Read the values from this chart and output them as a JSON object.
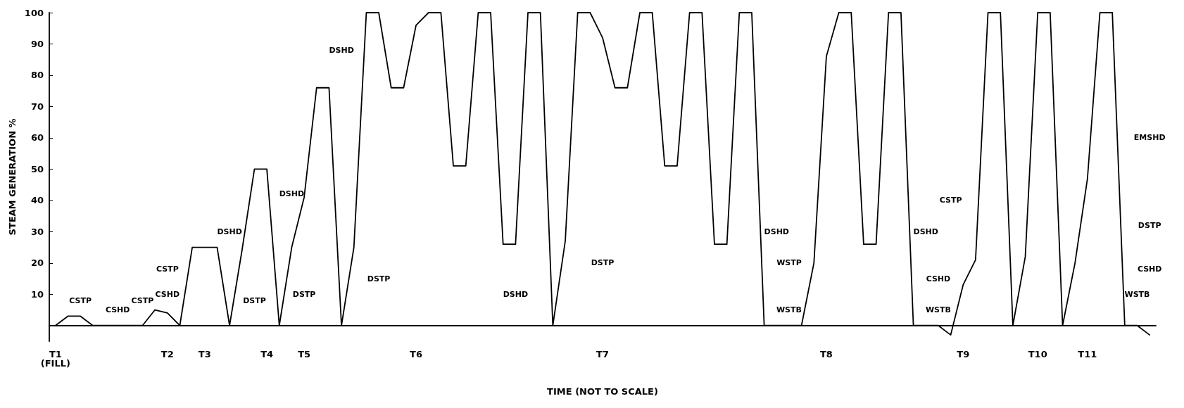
{
  "chart_data": {
    "type": "line",
    "xlabel": "TIME (NOT TO SCALE)",
    "ylabel": "STEAM GENERATION %",
    "categories": [
      "T1\n(FILL)",
      null,
      null,
      null,
      null,
      null,
      null,
      null,
      null,
      "T2",
      null,
      null,
      "T3",
      null,
      null,
      null,
      null,
      "T4",
      null,
      null,
      "T5",
      null,
      null,
      null,
      null,
      null,
      null,
      null,
      null,
      "T6",
      null,
      null,
      null,
      null,
      null,
      null,
      null,
      null,
      null,
      null,
      null,
      null,
      null,
      null,
      "T7",
      null,
      null,
      null,
      null,
      null,
      null,
      null,
      null,
      null,
      null,
      null,
      null,
      null,
      null,
      null,
      null,
      null,
      "T8",
      null,
      null,
      null,
      null,
      null,
      null,
      null,
      null,
      null,
      null,
      "T9",
      null,
      null,
      null,
      null,
      null,
      "T10",
      null,
      null,
      null,
      "T11",
      null,
      null,
      null,
      null,
      null
    ],
    "values": [
      0,
      3,
      3,
      0,
      0,
      0,
      0,
      0,
      5,
      4,
      0,
      25,
      25,
      25,
      0,
      24,
      50,
      50,
      0,
      25,
      41,
      76,
      76,
      0,
      25,
      100,
      100,
      76,
      76,
      96,
      100,
      100,
      51,
      51,
      100,
      100,
      26,
      26,
      100,
      100,
      0,
      27,
      100,
      100,
      92,
      76,
      76,
      100,
      100,
      51,
      51,
      100,
      100,
      26,
      26,
      100,
      100,
      0,
      0,
      0,
      0,
      20,
      86,
      100,
      100,
      26,
      26,
      100,
      100,
      0,
      0,
      0,
      -3,
      13,
      21,
      100,
      100,
      0,
      22,
      100,
      100,
      0,
      20,
      47,
      100,
      100,
      0,
      0,
      -3
    ],
    "color": "#000000",
    "marker": "none",
    "line_style": "solid",
    "grid": false,
    "ylim": [
      -5,
      100
    ],
    "yticks": [
      10,
      20,
      30,
      40,
      50,
      60,
      70,
      80,
      90,
      100
    ],
    "annotations": [
      "CSTP",
      "CSHD",
      "CSTP",
      "CSHD",
      "CSTP",
      "DSHD",
      "DSTP",
      "DSHD",
      "DSTP",
      "DSHD",
      "DSTP",
      "DSHD",
      "DSTP",
      "DSHD",
      "WSTB",
      "WSTP",
      "DSHD",
      "WSTB",
      "CSHD",
      "CSTP",
      "EMSHD",
      "DSTP",
      "WSTB",
      "CSHD"
    ]
  }
}
